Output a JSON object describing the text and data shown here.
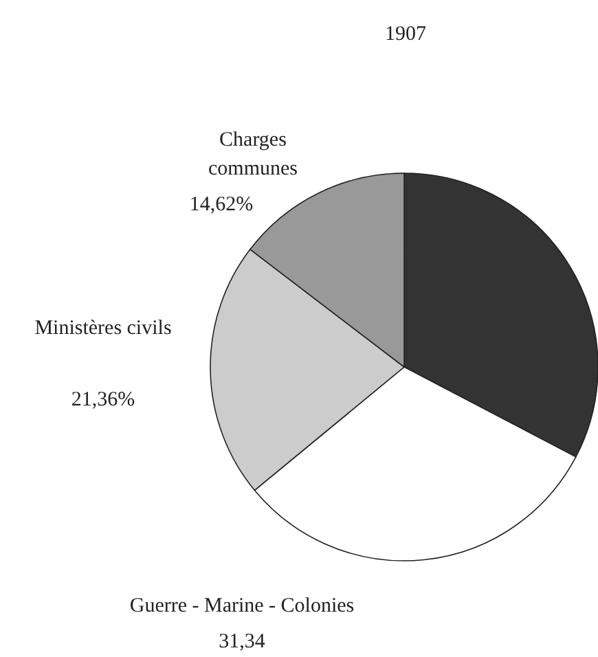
{
  "chart_data": {
    "type": "pie",
    "title": "1907",
    "categories": [
      null,
      "Guerre -  Marine -  Colonies",
      "Ministères civils",
      "Charges communes"
    ],
    "values": [
      32.68,
      31.34,
      21.36,
      14.62
    ],
    "colors": [
      "#333333",
      "#ffffff",
      "#cccccc",
      "#999999"
    ],
    "value_labels": [
      null,
      "31,34",
      "21,36%",
      "14,62%"
    ]
  }
}
